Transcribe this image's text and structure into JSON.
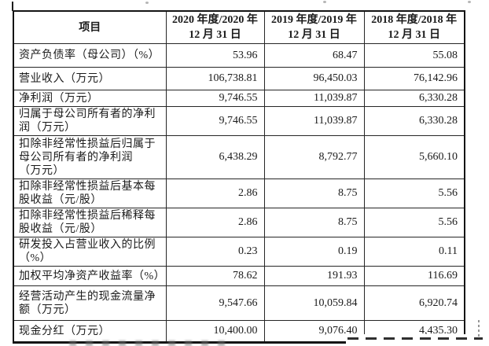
{
  "document": {
    "kind": "financial-indicators-table",
    "colors": {
      "background": "#ffffff",
      "text": "#1a1a1a",
      "border": "#141414"
    },
    "table": {
      "columns": [
        "项目",
        "2020 年度/2020 年\n12 月 31 日",
        "2019 年度/2019 年\n12 月 31 日",
        "2018 年度/2018 年\n12 月 31 日"
      ],
      "rows": [
        {
          "label": "资产负债率（母公司）（%）",
          "values": [
            "53.96",
            "68.47",
            "55.08"
          ]
        },
        {
          "label": "营业收入（万元）",
          "values": [
            "106,738.81",
            "96,450.03",
            "76,142.96"
          ]
        },
        {
          "label": "净利润（万元）",
          "values": [
            "9,746.55",
            "11,039.87",
            "6,330.28"
          ]
        },
        {
          "label": "归属于母公司所有者的净利\n润（万元）",
          "values": [
            "9,746.55",
            "11,039.87",
            "6,330.28"
          ]
        },
        {
          "label": "扣除非经常性损益后归属于\n母公司所有者的净利润\n（万元）",
          "values": [
            "6,438.29",
            "8,792.77",
            "5,660.10"
          ]
        },
        {
          "label": "扣除非经常性损益后基本每\n股收益（元/股）",
          "values": [
            "2.86",
            "8.75",
            "5.56"
          ]
        },
        {
          "label": "扣除非经常性损益后稀释每\n股收益（元/股）",
          "values": [
            "2.86",
            "8.75",
            "5.56"
          ]
        },
        {
          "label": "研发投入占营业收入的比例\n（%）",
          "values": [
            "0.23",
            "0.19",
            "0.11"
          ]
        },
        {
          "label": "加权平均净资产收益率（%）",
          "values": [
            "78.62",
            "191.93",
            "116.69"
          ]
        },
        {
          "label": "经营活动产生的现金流量净\n额（万元）",
          "values": [
            "9,547.66",
            "10,059.84",
            "6,920.74"
          ]
        },
        {
          "label": "现金分红（万元）",
          "values": [
            "10,400.00",
            "9,076.40",
            "4,435.30"
          ]
        }
      ]
    }
  }
}
